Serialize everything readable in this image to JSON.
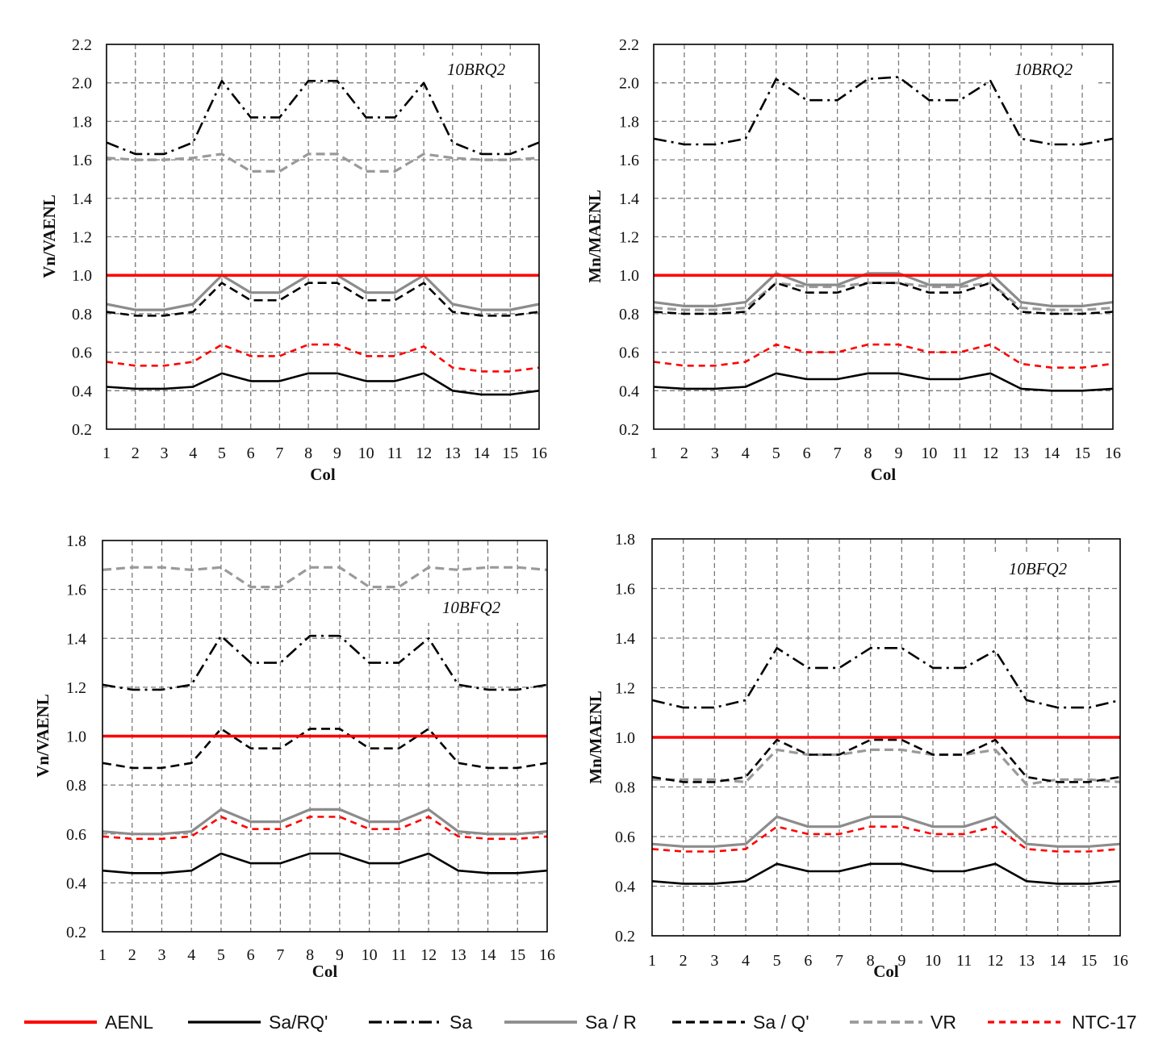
{
  "x_axis_label": "Col",
  "colors": {
    "AENL": "#ff0000",
    "Sa/RQ'": "#000000",
    "Sa": "#000000",
    "Sa / R": "#8c8c8c",
    "Sa / Q'": "#000000",
    "VR": "#9a9a9a",
    "NTC-17": "#ff0000",
    "grid": "#7a7a7a"
  },
  "legend": [
    {
      "name": "AENL",
      "style": "solid",
      "color": "#ff0000"
    },
    {
      "name": "Sa/RQ'",
      "style": "solid",
      "color": "#000000"
    },
    {
      "name": "Sa",
      "style": "dashdot",
      "color": "#000000"
    },
    {
      "name": "Sa / R",
      "style": "solid",
      "color": "#8c8c8c"
    },
    {
      "name": "Sa / Q'",
      "style": "dash",
      "color": "#000000"
    },
    {
      "name": "VR",
      "style": "dash",
      "color": "#9a9a9a"
    },
    {
      "name": "NTC-17",
      "style": "shortdash",
      "color": "#ff0000"
    }
  ],
  "chart_data": [
    {
      "type": "line",
      "title": "10BRQ2",
      "xlabel": "Col",
      "ylabel": "Vn/VAENL",
      "ylim": [
        0.2,
        2.2
      ],
      "yticks": [
        "0.2",
        "0.4",
        "0.6",
        "0.8",
        "1.0",
        "1.2",
        "1.4",
        "1.6",
        "1.8",
        "2.0",
        "2.2"
      ],
      "categories": [
        "1",
        "2",
        "3",
        "4",
        "5",
        "6",
        "7",
        "8",
        "9",
        "10",
        "11",
        "12",
        "13",
        "14",
        "15",
        "16"
      ],
      "grid": true,
      "series": [
        {
          "name": "AENL",
          "values": [
            1,
            1,
            1,
            1,
            1,
            1,
            1,
            1,
            1,
            1,
            1,
            1,
            1,
            1,
            1,
            1
          ]
        },
        {
          "name": "Sa/RQ'",
          "values": [
            0.42,
            0.41,
            0.41,
            0.42,
            0.49,
            0.45,
            0.45,
            0.49,
            0.49,
            0.45,
            0.45,
            0.49,
            0.4,
            0.38,
            0.38,
            0.4
          ]
        },
        {
          "name": "Sa",
          "values": [
            1.69,
            1.63,
            1.63,
            1.69,
            2.01,
            1.82,
            1.82,
            2.01,
            2.01,
            1.82,
            1.82,
            2.0,
            1.69,
            1.63,
            1.63,
            1.69
          ]
        },
        {
          "name": "Sa / R",
          "values": [
            0.85,
            0.82,
            0.82,
            0.85,
            1.0,
            0.91,
            0.91,
            1.0,
            1.0,
            0.91,
            0.91,
            1.0,
            0.85,
            0.82,
            0.82,
            0.85
          ]
        },
        {
          "name": "Sa / Q'",
          "values": [
            0.81,
            0.79,
            0.79,
            0.81,
            0.96,
            0.87,
            0.87,
            0.96,
            0.96,
            0.87,
            0.87,
            0.96,
            0.81,
            0.79,
            0.79,
            0.81
          ]
        },
        {
          "name": "VR",
          "values": [
            1.61,
            1.6,
            1.6,
            1.61,
            1.63,
            1.54,
            1.54,
            1.63,
            1.63,
            1.54,
            1.54,
            1.63,
            1.61,
            1.6,
            1.6,
            1.61
          ]
        },
        {
          "name": "NTC-17",
          "values": [
            0.55,
            0.53,
            0.53,
            0.55,
            0.64,
            0.58,
            0.58,
            0.64,
            0.64,
            0.58,
            0.58,
            0.63,
            0.52,
            0.5,
            0.5,
            0.52
          ]
        }
      ]
    },
    {
      "type": "line",
      "title": "10BRQ2",
      "xlabel": "Col",
      "ylabel": "Mn/MAENL",
      "ylim": [
        0.2,
        2.2
      ],
      "yticks": [
        "0.2",
        "0.4",
        "0.6",
        "0.8",
        "1.0",
        "1.2",
        "1.4",
        "1.6",
        "1.8",
        "2.0",
        "2.2"
      ],
      "categories": [
        "1",
        "2",
        "3",
        "4",
        "5",
        "6",
        "7",
        "8",
        "9",
        "10",
        "11",
        "12",
        "13",
        "14",
        "15",
        "16"
      ],
      "grid": true,
      "series": [
        {
          "name": "AENL",
          "values": [
            1,
            1,
            1,
            1,
            1,
            1,
            1,
            1,
            1,
            1,
            1,
            1,
            1,
            1,
            1,
            1
          ]
        },
        {
          "name": "Sa/RQ'",
          "values": [
            0.42,
            0.41,
            0.41,
            0.42,
            0.49,
            0.46,
            0.46,
            0.49,
            0.49,
            0.46,
            0.46,
            0.49,
            0.41,
            0.4,
            0.4,
            0.41
          ]
        },
        {
          "name": "Sa",
          "values": [
            1.71,
            1.68,
            1.68,
            1.71,
            2.02,
            1.91,
            1.91,
            2.02,
            2.03,
            1.91,
            1.91,
            2.01,
            1.71,
            1.68,
            1.68,
            1.71
          ]
        },
        {
          "name": "Sa / R",
          "values": [
            0.86,
            0.84,
            0.84,
            0.86,
            1.01,
            0.95,
            0.95,
            1.01,
            1.01,
            0.95,
            0.95,
            1.01,
            0.86,
            0.84,
            0.84,
            0.86
          ]
        },
        {
          "name": "Sa / Q'",
          "values": [
            0.81,
            0.8,
            0.8,
            0.81,
            0.96,
            0.91,
            0.91,
            0.96,
            0.96,
            0.91,
            0.91,
            0.96,
            0.81,
            0.8,
            0.8,
            0.81
          ]
        },
        {
          "name": "VR",
          "values": [
            0.83,
            0.82,
            0.82,
            0.83,
            0.96,
            0.94,
            0.94,
            0.96,
            0.96,
            0.94,
            0.94,
            0.96,
            0.83,
            0.82,
            0.82,
            0.83
          ]
        },
        {
          "name": "NTC-17",
          "values": [
            0.55,
            0.53,
            0.53,
            0.55,
            0.64,
            0.6,
            0.6,
            0.64,
            0.64,
            0.6,
            0.6,
            0.64,
            0.54,
            0.52,
            0.52,
            0.54
          ]
        }
      ]
    },
    {
      "type": "line",
      "title": "10BFQ2",
      "xlabel": "Col",
      "ylabel": "Vn/VAENL",
      "ylim": [
        0.2,
        1.8
      ],
      "yticks": [
        "0.2",
        "0.4",
        "0.6",
        "0.8",
        "1.0",
        "1.2",
        "1.4",
        "1.6",
        "1.8"
      ],
      "categories": [
        "1",
        "2",
        "3",
        "4",
        "5",
        "6",
        "7",
        "8",
        "9",
        "10",
        "11",
        "12",
        "13",
        "14",
        "15",
        "16"
      ],
      "grid": true,
      "series": [
        {
          "name": "AENL",
          "values": [
            1,
            1,
            1,
            1,
            1,
            1,
            1,
            1,
            1,
            1,
            1,
            1,
            1,
            1,
            1,
            1
          ]
        },
        {
          "name": "Sa/RQ'",
          "values": [
            0.45,
            0.44,
            0.44,
            0.45,
            0.52,
            0.48,
            0.48,
            0.52,
            0.52,
            0.48,
            0.48,
            0.52,
            0.45,
            0.44,
            0.44,
            0.45
          ]
        },
        {
          "name": "Sa",
          "values": [
            1.21,
            1.19,
            1.19,
            1.21,
            1.41,
            1.3,
            1.3,
            1.41,
            1.41,
            1.3,
            1.3,
            1.4,
            1.21,
            1.19,
            1.19,
            1.21
          ]
        },
        {
          "name": "Sa / R",
          "values": [
            0.61,
            0.6,
            0.6,
            0.61,
            0.7,
            0.65,
            0.65,
            0.7,
            0.7,
            0.65,
            0.65,
            0.7,
            0.61,
            0.6,
            0.6,
            0.61
          ]
        },
        {
          "name": "Sa / Q'",
          "values": [
            0.89,
            0.87,
            0.87,
            0.89,
            1.03,
            0.95,
            0.95,
            1.03,
            1.03,
            0.95,
            0.95,
            1.03,
            0.89,
            0.87,
            0.87,
            0.89
          ]
        },
        {
          "name": "VR",
          "values": [
            1.68,
            1.69,
            1.69,
            1.68,
            1.69,
            1.61,
            1.61,
            1.69,
            1.69,
            1.61,
            1.61,
            1.69,
            1.68,
            1.69,
            1.69,
            1.68
          ]
        },
        {
          "name": "NTC-17",
          "values": [
            0.59,
            0.58,
            0.58,
            0.59,
            0.67,
            0.62,
            0.62,
            0.67,
            0.67,
            0.62,
            0.62,
            0.67,
            0.59,
            0.58,
            0.58,
            0.59
          ]
        }
      ]
    },
    {
      "type": "line",
      "title": "10BFQ2",
      "xlabel": "Col",
      "ylabel": "Mn/MAENL",
      "ylim": [
        0.2,
        1.8
      ],
      "yticks": [
        "0.2",
        "0.4",
        "0.6",
        "0.8",
        "1.0",
        "1.2",
        "1.4",
        "1.6",
        "1.8"
      ],
      "categories": [
        "1",
        "2",
        "3",
        "4",
        "5",
        "6",
        "7",
        "8",
        "9",
        "10",
        "11",
        "12",
        "13",
        "14",
        "15",
        "16"
      ],
      "grid": true,
      "series": [
        {
          "name": "AENL",
          "values": [
            1,
            1,
            1,
            1,
            1,
            1,
            1,
            1,
            1,
            1,
            1,
            1,
            1,
            1,
            1,
            1
          ]
        },
        {
          "name": "Sa/RQ'",
          "values": [
            0.42,
            0.41,
            0.41,
            0.42,
            0.49,
            0.46,
            0.46,
            0.49,
            0.49,
            0.46,
            0.46,
            0.49,
            0.42,
            0.41,
            0.41,
            0.42
          ]
        },
        {
          "name": "Sa",
          "values": [
            1.15,
            1.12,
            1.12,
            1.15,
            1.36,
            1.28,
            1.28,
            1.36,
            1.36,
            1.28,
            1.28,
            1.35,
            1.15,
            1.12,
            1.12,
            1.15
          ]
        },
        {
          "name": "Sa / R",
          "values": [
            0.57,
            0.56,
            0.56,
            0.57,
            0.68,
            0.64,
            0.64,
            0.68,
            0.68,
            0.64,
            0.64,
            0.68,
            0.57,
            0.56,
            0.56,
            0.57
          ]
        },
        {
          "name": "Sa / Q'",
          "values": [
            0.84,
            0.82,
            0.82,
            0.84,
            0.99,
            0.93,
            0.93,
            0.99,
            0.99,
            0.93,
            0.93,
            0.99,
            0.84,
            0.82,
            0.82,
            0.84
          ]
        },
        {
          "name": "VR",
          "values": [
            0.83,
            0.83,
            0.83,
            0.82,
            0.95,
            0.93,
            0.93,
            0.95,
            0.95,
            0.93,
            0.93,
            0.95,
            0.81,
            0.83,
            0.83,
            0.82
          ]
        },
        {
          "name": "NTC-17",
          "values": [
            0.55,
            0.54,
            0.54,
            0.55,
            0.64,
            0.61,
            0.61,
            0.64,
            0.64,
            0.61,
            0.61,
            0.64,
            0.55,
            0.54,
            0.54,
            0.55
          ]
        }
      ]
    }
  ]
}
